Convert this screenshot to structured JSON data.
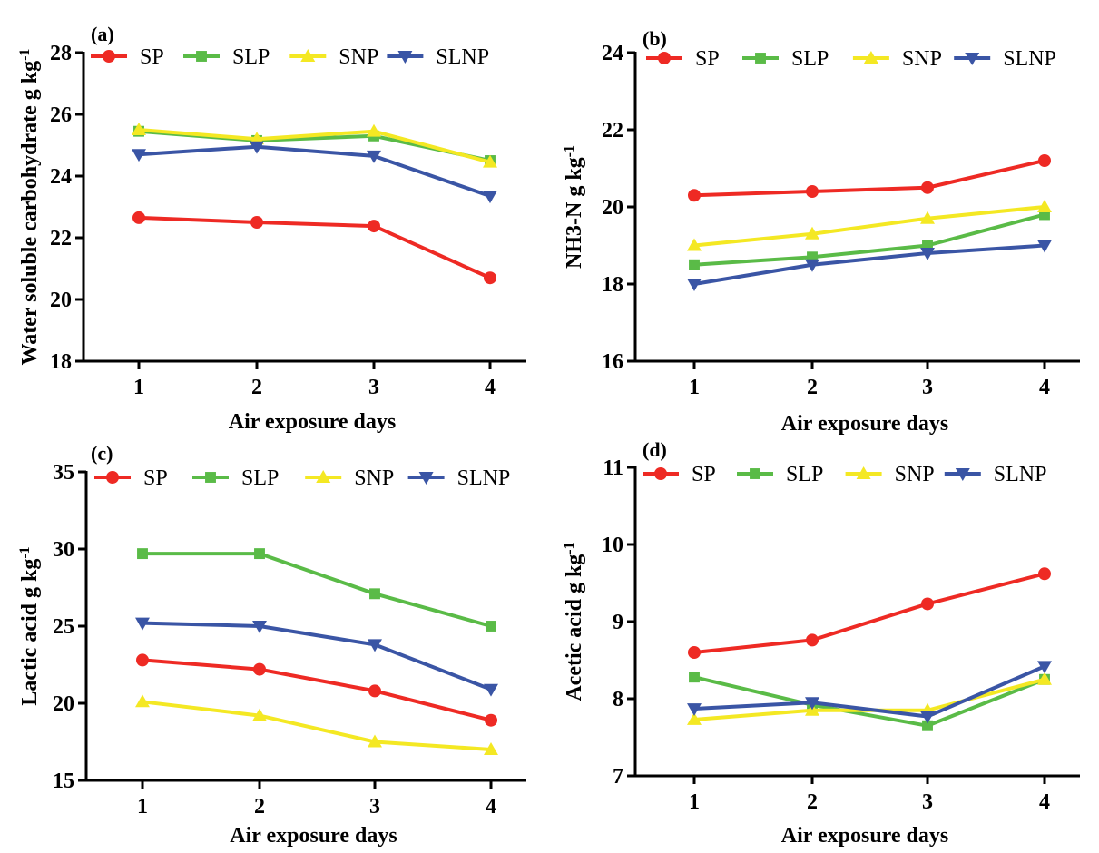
{
  "chart_data": [
    {
      "panel_label": "(a)",
      "type": "line",
      "xlabel": "Air exposure days",
      "ylabel": "Water soluble carbohydrate g kg",
      "ylabel_sup": "-1",
      "x": [
        1,
        2,
        3,
        4
      ],
      "ylim": [
        18,
        28
      ],
      "yticks": [
        18,
        20,
        22,
        24,
        26,
        28
      ],
      "series": [
        {
          "name": "SP",
          "values": [
            22.65,
            22.5,
            22.38,
            20.7
          ]
        },
        {
          "name": "SLP",
          "values": [
            25.45,
            25.15,
            25.3,
            24.5
          ]
        },
        {
          "name": "SNP",
          "values": [
            25.5,
            25.2,
            25.45,
            24.45
          ]
        },
        {
          "name": "SLNP",
          "values": [
            24.7,
            24.95,
            24.65,
            23.35
          ]
        }
      ]
    },
    {
      "panel_label": "(b)",
      "type": "line",
      "xlabel": "Air exposure days",
      "ylabel": "NH3-N g kg",
      "ylabel_sup": "-1",
      "x": [
        1,
        2,
        3,
        4
      ],
      "ylim": [
        16,
        24
      ],
      "yticks": [
        16,
        18,
        20,
        22,
        24
      ],
      "series": [
        {
          "name": "SP",
          "values": [
            20.3,
            20.4,
            20.5,
            21.2
          ]
        },
        {
          "name": "SLP",
          "values": [
            18.5,
            18.7,
            19.0,
            19.8
          ]
        },
        {
          "name": "SNP",
          "values": [
            19.0,
            19.3,
            19.7,
            20.0
          ]
        },
        {
          "name": "SLNP",
          "values": [
            18.0,
            18.5,
            18.8,
            19.0
          ]
        }
      ]
    },
    {
      "panel_label": "(c)",
      "type": "line",
      "xlabel": "Air exposure days",
      "ylabel": "Lactic acid g kg",
      "ylabel_sup": "-1",
      "x": [
        1,
        2,
        3,
        4
      ],
      "ylim": [
        15,
        35
      ],
      "yticks": [
        15,
        20,
        25,
        30,
        35
      ],
      "series": [
        {
          "name": "SP",
          "values": [
            22.8,
            22.2,
            20.8,
            18.9
          ]
        },
        {
          "name": "SLP",
          "values": [
            29.7,
            29.7,
            27.1,
            25.0
          ]
        },
        {
          "name": "SNP",
          "values": [
            20.1,
            19.2,
            17.5,
            17.0
          ]
        },
        {
          "name": "SLNP",
          "values": [
            25.2,
            25.0,
            23.8,
            20.9
          ]
        }
      ]
    },
    {
      "panel_label": "(d)",
      "type": "line",
      "xlabel": "Air exposure days",
      "ylabel": "Acetic acid g kg",
      "ylabel_sup": "-1",
      "x": [
        1,
        2,
        3,
        4
      ],
      "ylim": [
        7,
        11
      ],
      "yticks": [
        7,
        8,
        9,
        10,
        11
      ],
      "series": [
        {
          "name": "SP",
          "values": [
            8.6,
            8.76,
            9.23,
            9.62
          ]
        },
        {
          "name": "SLP",
          "values": [
            8.28,
            7.92,
            7.65,
            8.25
          ]
        },
        {
          "name": "SNP",
          "values": [
            7.73,
            7.85,
            7.85,
            8.25
          ]
        },
        {
          "name": "SLNP",
          "values": [
            7.87,
            7.95,
            7.77,
            8.42
          ]
        }
      ]
    }
  ],
  "series_styles": [
    {
      "name": "SP",
      "color": "#ee2a24",
      "marker": "circle"
    },
    {
      "name": "SLP",
      "color": "#5abb47",
      "marker": "square"
    },
    {
      "name": "SNP",
      "color": "#f4e823",
      "marker": "triangle-up"
    },
    {
      "name": "SLNP",
      "color": "#3a55a5",
      "marker": "triangle-down"
    }
  ]
}
